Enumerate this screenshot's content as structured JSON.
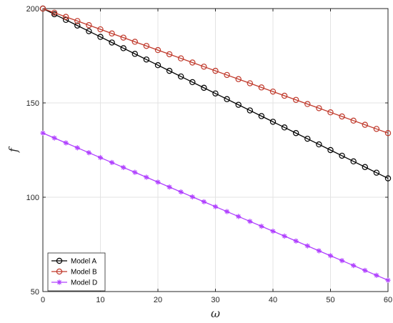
{
  "chart_data": {
    "type": "line",
    "xlabel": "ω",
    "ylabel": "f",
    "xlim": [
      0,
      60
    ],
    "ylim": [
      50,
      200
    ],
    "xticks": [
      0,
      10,
      20,
      30,
      40,
      50,
      60
    ],
    "yticks": [
      50,
      100,
      150,
      200
    ],
    "grid": true,
    "legend_position": "bottom-left",
    "x": [
      0,
      2,
      4,
      6,
      8,
      10,
      12,
      14,
      16,
      18,
      20,
      22,
      24,
      26,
      28,
      30,
      32,
      34,
      36,
      38,
      40,
      42,
      44,
      46,
      48,
      50,
      52,
      54,
      56,
      58,
      60
    ],
    "series": [
      {
        "name": "Model A",
        "color": "#000000",
        "marker": "circle",
        "values": [
          200,
          197,
          194,
          191,
          188,
          185,
          182,
          179,
          176,
          173,
          170,
          167,
          164,
          161,
          158,
          155,
          152,
          149,
          146,
          143,
          140,
          137,
          134,
          131,
          128,
          125,
          122,
          119,
          116,
          113,
          110
        ]
      },
      {
        "name": "Model B",
        "color": "#c0392b",
        "marker": "circle",
        "values": [
          200,
          197.8,
          195.6,
          193.4,
          191.2,
          189,
          186.8,
          184.6,
          182.4,
          180.2,
          178,
          175.8,
          173.6,
          171.4,
          169.2,
          167,
          164.8,
          162.6,
          160.4,
          158.2,
          156,
          153.8,
          151.6,
          149.4,
          147.2,
          145,
          142.8,
          140.6,
          138.4,
          136.2,
          134
        ]
      },
      {
        "name": "Model D",
        "color": "#b040ff",
        "marker": "asterisk",
        "values": [
          134,
          131.4,
          128.8,
          126.2,
          123.6,
          121,
          118.4,
          115.8,
          113.2,
          110.6,
          108,
          105.4,
          102.8,
          100.2,
          97.6,
          95,
          92.4,
          89.8,
          87.2,
          84.6,
          82,
          79.4,
          76.8,
          74.2,
          71.6,
          69,
          66.4,
          63.8,
          61.2,
          58.6,
          56
        ]
      }
    ]
  }
}
